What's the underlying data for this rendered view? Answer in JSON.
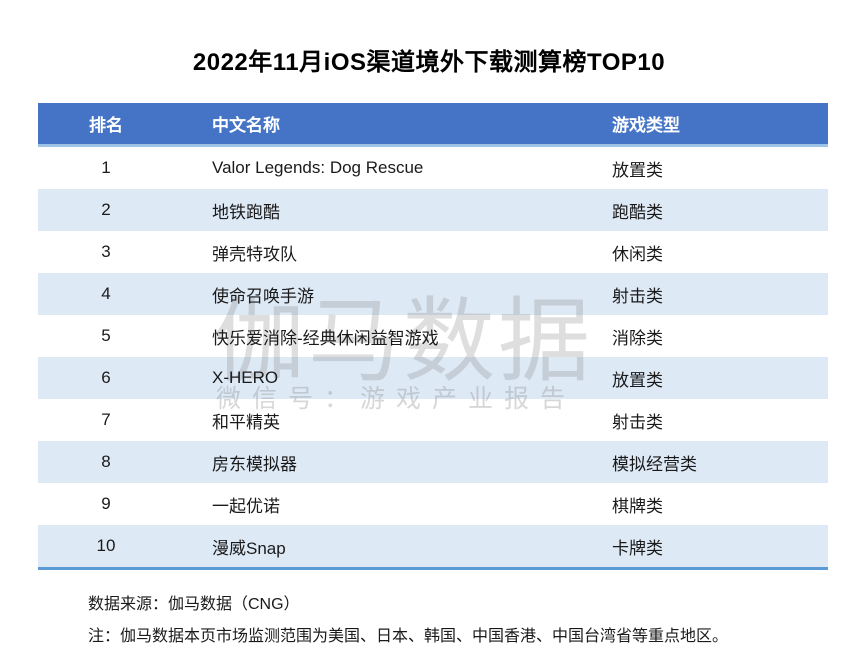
{
  "title": "2022年11月iOS渠道境外下载测算榜TOP10",
  "chart_data": {
    "type": "table",
    "title": "2022年11月iOS渠道境外下载测算榜TOP10",
    "columns": [
      "排名",
      "中文名称",
      "游戏类型"
    ],
    "rows": [
      [
        "1",
        "Valor Legends: Dog Rescue",
        "放置类"
      ],
      [
        "2",
        "地铁跑酷",
        "跑酷类"
      ],
      [
        "3",
        "弹壳特攻队",
        "休闲类"
      ],
      [
        "4",
        "使命召唤手游",
        "射击类"
      ],
      [
        "5",
        "快乐爱消除-经典休闲益智游戏",
        "消除类"
      ],
      [
        "6",
        "X-HERO",
        "放置类"
      ],
      [
        "7",
        "和平精英",
        "射击类"
      ],
      [
        "8",
        "房东模拟器",
        "模拟经营类"
      ],
      [
        "9",
        "一起优诺",
        "棋牌类"
      ],
      [
        "10",
        "漫威Snap",
        "卡牌类"
      ]
    ],
    "layout": {
      "header_style": "solid-fill",
      "row_striping": "even-rows-tinted",
      "grid": "off"
    }
  },
  "watermark": {
    "main": "伽马数据",
    "sub": "微信号：游戏产业报告"
  },
  "footer": {
    "source": "数据来源：伽马数据（CNG）",
    "note": "注：伽马数据本页市场监测范围为美国、日本、韩国、中国香港、中国台湾省等重点地区。"
  },
  "colors": {
    "header_bg": "#4574C6",
    "header_text": "#FFFFFF",
    "stripe_bg": "#DEE9F6",
    "header_underline": "#9DC3E6",
    "table_bottom_border": "#5B9BD5",
    "body_text": "#1A1A1A",
    "watermark_gray": "#7D7D7D"
  }
}
